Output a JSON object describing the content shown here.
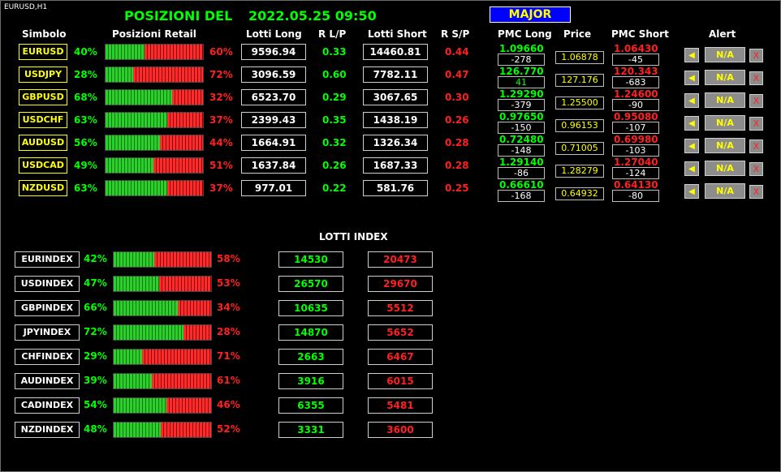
{
  "chart_symbol": "EURUSD,H1",
  "title": {
    "label": "POSIZIONI  DEL",
    "datetime": "2022.05.25 09:50"
  },
  "major_button": "MAJOR",
  "headers": {
    "simbolo": "Simbolo",
    "posizioni": "Posizioni Retail",
    "lotti_long": "Lotti Long",
    "r_lp": "R L/P",
    "lotti_short": "Lotti Short",
    "r_sp": "R S/P",
    "pmc_long": "PMC Long",
    "price": "Price",
    "pmc_short": "PMC Short",
    "alert": "Alert"
  },
  "pairs": [
    {
      "symbol": "EURUSD",
      "long_pct": "40%",
      "long_frac": 0.4,
      "short_pct": "60%",
      "lotti_long": "9596.94",
      "r_lp": "0.33",
      "lotti_short": "14460.81",
      "r_sp": "0.44",
      "pmc_long": "1.09660",
      "pmc_long_diff": "-278",
      "price": "1.06878",
      "pmc_short": "1.06430",
      "pmc_short_diff": "-45",
      "alert": "N/A"
    },
    {
      "symbol": "USDJPY",
      "long_pct": "28%",
      "long_frac": 0.28,
      "short_pct": "72%",
      "lotti_long": "3096.59",
      "r_lp": "0.60",
      "lotti_short": "7782.11",
      "r_sp": "0.47",
      "pmc_long": "126.770",
      "pmc_long_diff": "41",
      "price": "127.176",
      "pmc_short": "120.343",
      "pmc_short_diff": "-683",
      "alert": "N/A"
    },
    {
      "symbol": "GBPUSD",
      "long_pct": "68%",
      "long_frac": 0.68,
      "short_pct": "32%",
      "lotti_long": "6523.70",
      "r_lp": "0.29",
      "lotti_short": "3067.65",
      "r_sp": "0.30",
      "pmc_long": "1.29290",
      "pmc_long_diff": "-379",
      "price": "1.25500",
      "pmc_short": "1.24600",
      "pmc_short_diff": "-90",
      "alert": "N/A"
    },
    {
      "symbol": "USDCHF",
      "long_pct": "63%",
      "long_frac": 0.63,
      "short_pct": "37%",
      "lotti_long": "2399.43",
      "r_lp": "0.35",
      "lotti_short": "1438.19",
      "r_sp": "0.26",
      "pmc_long": "0.97650",
      "pmc_long_diff": "-150",
      "price": "0.96153",
      "pmc_short": "0.95080",
      "pmc_short_diff": "-107",
      "alert": "N/A"
    },
    {
      "symbol": "AUDUSD",
      "long_pct": "56%",
      "long_frac": 0.56,
      "short_pct": "44%",
      "lotti_long": "1664.91",
      "r_lp": "0.32",
      "lotti_short": "1326.34",
      "r_sp": "0.28",
      "pmc_long": "0.72480",
      "pmc_long_diff": "-148",
      "price": "0.71005",
      "pmc_short": "0.69980",
      "pmc_short_diff": "-103",
      "alert": "N/A"
    },
    {
      "symbol": "USDCAD",
      "long_pct": "49%",
      "long_frac": 0.49,
      "short_pct": "51%",
      "lotti_long": "1637.84",
      "r_lp": "0.26",
      "lotti_short": "1687.33",
      "r_sp": "0.28",
      "pmc_long": "1.29140",
      "pmc_long_diff": "-86",
      "price": "1.28279",
      "pmc_short": "1.27040",
      "pmc_short_diff": "-124",
      "alert": "N/A"
    },
    {
      "symbol": "NZDUSD",
      "long_pct": "63%",
      "long_frac": 0.63,
      "short_pct": "37%",
      "lotti_long": "977.01",
      "r_lp": "0.22",
      "lotti_short": "581.76",
      "r_sp": "0.25",
      "pmc_long": "0.66610",
      "pmc_long_diff": "-168",
      "price": "0.64932",
      "pmc_short": "0.64130",
      "pmc_short_diff": "-80",
      "alert": "N/A"
    }
  ],
  "alert_x": "X",
  "lotti_index_title": "LOTTI INDEX",
  "indexes": [
    {
      "name": "EURINDEX",
      "long_pct": "42%",
      "long_frac": 0.42,
      "short_pct": "58%",
      "long_lots": "14530",
      "short_lots": "20473"
    },
    {
      "name": "USDINDEX",
      "long_pct": "47%",
      "long_frac": 0.47,
      "short_pct": "53%",
      "long_lots": "26570",
      "short_lots": "29670"
    },
    {
      "name": "GBPINDEX",
      "long_pct": "66%",
      "long_frac": 0.66,
      "short_pct": "34%",
      "long_lots": "10635",
      "short_lots": "5512"
    },
    {
      "name": "JPYINDEX",
      "long_pct": "72%",
      "long_frac": 0.72,
      "short_pct": "28%",
      "long_lots": "14870",
      "short_lots": "5652"
    },
    {
      "name": "CHFINDEX",
      "long_pct": "29%",
      "long_frac": 0.29,
      "short_pct": "71%",
      "long_lots": "2663",
      "short_lots": "6467"
    },
    {
      "name": "AUDINDEX",
      "long_pct": "39%",
      "long_frac": 0.39,
      "short_pct": "61%",
      "long_lots": "3916",
      "short_lots": "6015"
    },
    {
      "name": "CADINDEX",
      "long_pct": "54%",
      "long_frac": 0.54,
      "short_pct": "46%",
      "long_lots": "6355",
      "short_lots": "5481"
    },
    {
      "name": "NZDINDEX",
      "long_pct": "48%",
      "long_frac": 0.48,
      "short_pct": "52%",
      "long_lots": "3331",
      "short_lots": "3600"
    }
  ],
  "colors": {
    "green": "#00ff00",
    "red": "#ff2020",
    "yellow": "#ffff00",
    "major_bg": "#0000ff"
  }
}
